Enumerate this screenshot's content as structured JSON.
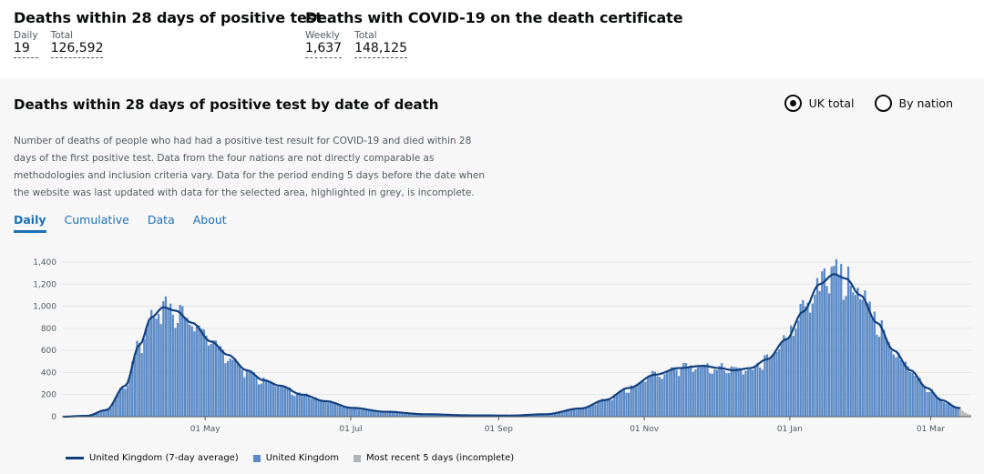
{
  "headline": {
    "positive_test": {
      "title": "Deaths within 28 days of positive test",
      "daily_label": "Daily",
      "daily_value": "19",
      "total_label": "Total",
      "total_value": "126,592"
    },
    "certificate": {
      "title": "Deaths with COVID-19 on the death certificate",
      "weekly_label": "Weekly",
      "weekly_value": "1,637",
      "total_label": "Total",
      "total_value": "148,125"
    }
  },
  "card": {
    "title": "Deaths within 28 days of positive test by date of death",
    "radio_uk": "UK total",
    "radio_nation": "By nation",
    "description": "Number of deaths of people who had had a positive test result for COVID-19 and died within 28 days of the first positive test. Data from the four nations are not directly comparable as methodologies and inclusion criteria vary. Data for the period ending 5 days before the date when the website was last updated with data for the selected area, highlighted in grey, is incomplete.",
    "tabs": [
      "Daily",
      "Cumulative",
      "Data",
      "About"
    ]
  },
  "colors": {
    "bar": "#5b8ac6",
    "line": "#12407f",
    "incomplete": "#b1b4b6",
    "grid": "#e3e3e3"
  },
  "chart_data": {
    "type": "bar",
    "title": "Deaths within 28 days of positive test by date of death",
    "x_start": "2020-03-02",
    "x_end": "2021-03-17",
    "ylim": [
      0,
      1400
    ],
    "y_ticks": [
      0,
      200,
      400,
      600,
      800,
      1000,
      1200,
      1400
    ],
    "y_tick_labels": [
      "0",
      "200",
      "400",
      "600",
      "800",
      "1,000",
      "1,200",
      "1,400"
    ],
    "x_ticks": [
      {
        "date": "2020-05-01",
        "label": "01 May"
      },
      {
        "date": "2020-07-01",
        "label": "01 Jul"
      },
      {
        "date": "2020-09-01",
        "label": "01 Sep"
      },
      {
        "date": "2020-11-01",
        "label": "01 Nov"
      },
      {
        "date": "2021-01-01",
        "label": "01 Jan"
      },
      {
        "date": "2021-03-01",
        "label": "01 Mar"
      }
    ],
    "avg_keypoints": [
      [
        "2020-03-02",
        0
      ],
      [
        "2020-03-12",
        8
      ],
      [
        "2020-03-20",
        60
      ],
      [
        "2020-03-28",
        280
      ],
      [
        "2020-04-03",
        650
      ],
      [
        "2020-04-08",
        900
      ],
      [
        "2020-04-13",
        990
      ],
      [
        "2020-04-18",
        960
      ],
      [
        "2020-04-25",
        850
      ],
      [
        "2020-05-03",
        680
      ],
      [
        "2020-05-10",
        560
      ],
      [
        "2020-05-18",
        420
      ],
      [
        "2020-05-25",
        330
      ],
      [
        "2020-06-01",
        280
      ],
      [
        "2020-06-10",
        200
      ],
      [
        "2020-06-20",
        140
      ],
      [
        "2020-07-01",
        80
      ],
      [
        "2020-07-15",
        45
      ],
      [
        "2020-08-01",
        22
      ],
      [
        "2020-08-20",
        12
      ],
      [
        "2020-09-05",
        10
      ],
      [
        "2020-09-20",
        22
      ],
      [
        "2020-10-05",
        75
      ],
      [
        "2020-10-15",
        150
      ],
      [
        "2020-10-25",
        260
      ],
      [
        "2020-11-05",
        380
      ],
      [
        "2020-11-15",
        440
      ],
      [
        "2020-11-25",
        460
      ],
      [
        "2020-12-02",
        440
      ],
      [
        "2020-12-08",
        420
      ],
      [
        "2020-12-15",
        440
      ],
      [
        "2020-12-22",
        520
      ],
      [
        "2020-12-30",
        700
      ],
      [
        "2021-01-06",
        950
      ],
      [
        "2021-01-13",
        1200
      ],
      [
        "2021-01-19",
        1290
      ],
      [
        "2021-01-24",
        1250
      ],
      [
        "2021-01-30",
        1100
      ],
      [
        "2021-02-06",
        850
      ],
      [
        "2021-02-13",
        600
      ],
      [
        "2021-02-20",
        420
      ],
      [
        "2021-02-27",
        260
      ],
      [
        "2021-03-05",
        150
      ],
      [
        "2021-03-12",
        80
      ],
      [
        "2021-03-17",
        50
      ]
    ],
    "incomplete_days": 5,
    "legend": [
      "United Kingdom (7-day average)",
      "United Kingdom",
      "Most recent 5 days (incomplete)"
    ]
  }
}
